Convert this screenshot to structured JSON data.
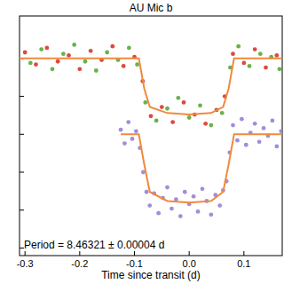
{
  "chart_data": {
    "type": "scatter",
    "title": "AU Mic b",
    "xlabel": "Time since transit (d)",
    "annotation": "Period = 8.46321 ± 0.00004 d",
    "xlim": [
      -0.31,
      0.17
    ],
    "xticks": [
      {
        "value": -0.3,
        "label": "-0.3"
      },
      {
        "value": -0.2,
        "label": "-0.2"
      },
      {
        "value": -0.1,
        "label": "-0.1"
      },
      {
        "value": 0.0,
        "label": "0.0"
      },
      {
        "value": 0.1,
        "label": "0.1"
      }
    ],
    "ylim": [
      0.987,
      1.0028
    ],
    "yticks": [
      0.9875,
      0.99,
      0.9925,
      0.995,
      0.9975,
      1.0
    ],
    "tick_labels": "x",
    "series": [
      {
        "type": "scatter",
        "marker": "circle",
        "color": "#d8362a",
        "x": [
          -0.3,
          -0.28,
          -0.26,
          -0.24,
          -0.22,
          -0.2,
          -0.18,
          -0.16,
          -0.14,
          -0.12,
          -0.1,
          -0.085,
          -0.07,
          -0.05,
          -0.03,
          -0.01,
          0.01,
          0.03,
          0.05,
          0.065,
          0.08,
          0.1,
          0.12,
          0.14,
          0.16
        ],
        "values": [
          1.0004,
          0.9996,
          1.0007,
          0.9998,
          1.0002,
          0.9993,
          1.0005,
          0.9999,
          1.0008,
          0.9995,
          1.0001,
          0.9985,
          0.9962,
          0.9968,
          0.9958,
          0.9971,
          0.9963,
          0.9957,
          0.9966,
          0.9975,
          1.0003,
          0.9997,
          1.0006,
          0.9994,
          1.0002
        ]
      },
      {
        "type": "scatter",
        "marker": "circle",
        "color": "#5aa83a",
        "x": [
          -0.29,
          -0.27,
          -0.25,
          -0.23,
          -0.21,
          -0.19,
          -0.17,
          -0.15,
          -0.13,
          -0.11,
          -0.095,
          -0.08,
          -0.06,
          -0.04,
          -0.02,
          0.0,
          0.02,
          0.04,
          0.06,
          0.075,
          0.09,
          0.11,
          0.13,
          0.15,
          0.165
        ],
        "values": [
          0.9997,
          1.0006,
          0.9993,
          1.0003,
          1.0009,
          0.9998,
          0.9992,
          1.0004,
          0.9999,
          1.0007,
          0.9996,
          0.9971,
          0.9959,
          0.9967,
          0.9974,
          0.9961,
          0.9969,
          0.9956,
          0.9964,
          0.9994,
          1.0008,
          0.9995,
          1.0003,
          1.0001,
          0.9993
        ]
      },
      {
        "type": "scatter",
        "marker": "circle",
        "color": "#9a7fd6",
        "x": [
          -0.125,
          -0.118,
          -0.111,
          -0.104,
          -0.097,
          -0.09,
          -0.084,
          -0.078,
          -0.072,
          -0.064,
          -0.056,
          -0.048,
          -0.04,
          -0.032,
          -0.024,
          -0.016,
          -0.008,
          0.0,
          0.008,
          0.016,
          0.024,
          0.032,
          0.04,
          0.048,
          0.056,
          0.062,
          0.068,
          0.074,
          0.08,
          0.088,
          0.096,
          0.104,
          0.112,
          0.12,
          0.128,
          0.136,
          0.144,
          0.152,
          0.16,
          0.168
        ],
        "values": [
          0.9953,
          0.9944,
          0.9958,
          0.9947,
          0.9952,
          0.9941,
          0.9925,
          0.9912,
          0.9903,
          0.9911,
          0.9898,
          0.9908,
          0.9915,
          0.9901,
          0.9907,
          0.9896,
          0.9912,
          0.9904,
          0.9909,
          0.9899,
          0.9914,
          0.9906,
          0.9897,
          0.991,
          0.9903,
          0.9913,
          0.9919,
          0.9938,
          0.9956,
          0.9946,
          0.996,
          0.9943,
          0.9951,
          0.9957,
          0.9945,
          0.9954,
          0.9949,
          0.9959,
          0.9942,
          0.9952
        ]
      },
      {
        "type": "line",
        "line_style": "solid",
        "color": "#f08a3c",
        "x": [
          -0.31,
          -0.092,
          -0.082,
          -0.072,
          -0.04,
          0.0,
          0.04,
          0.062,
          0.072,
          0.082,
          0.17
        ],
        "values": [
          1.0,
          1.0,
          0.998,
          0.9968,
          0.9964,
          0.9963,
          0.9964,
          0.9968,
          0.998,
          1.0,
          1.0
        ]
      },
      {
        "type": "line",
        "line_style": "solid",
        "color": "#f08a3c",
        "x": [
          -0.125,
          -0.092,
          -0.082,
          -0.072,
          -0.04,
          0.0,
          0.04,
          0.062,
          0.072,
          0.082,
          0.17
        ],
        "values": [
          0.995,
          0.995,
          0.993,
          0.9912,
          0.9906,
          0.9905,
          0.9906,
          0.9912,
          0.993,
          0.995,
          0.995
        ]
      }
    ]
  }
}
